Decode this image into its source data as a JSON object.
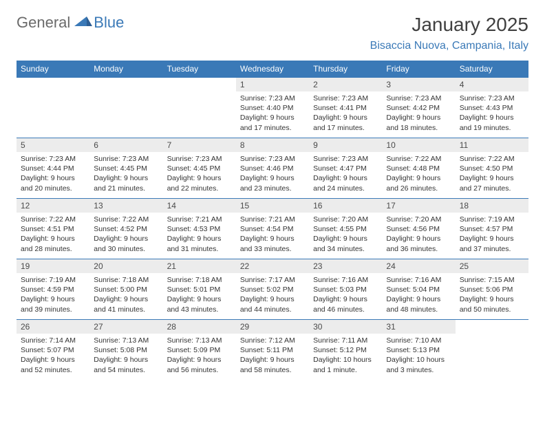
{
  "logo": {
    "text1": "General",
    "text2": "Blue",
    "accent": "#3a79b7",
    "gray": "#6a6a6a"
  },
  "title": "January 2025",
  "location": "Bisaccia Nuova, Campania, Italy",
  "colors": {
    "header_bg": "#3a79b7",
    "day_num_bg": "#ececec",
    "border": "#3a79b7",
    "text": "#333333",
    "title": "#404040"
  },
  "days_of_week": [
    "Sunday",
    "Monday",
    "Tuesday",
    "Wednesday",
    "Thursday",
    "Friday",
    "Saturday"
  ],
  "weeks": [
    [
      {
        "n": "",
        "sr": "",
        "ss": "",
        "dl": ""
      },
      {
        "n": "",
        "sr": "",
        "ss": "",
        "dl": ""
      },
      {
        "n": "",
        "sr": "",
        "ss": "",
        "dl": ""
      },
      {
        "n": "1",
        "sr": "Sunrise: 7:23 AM",
        "ss": "Sunset: 4:40 PM",
        "dl": "Daylight: 9 hours and 17 minutes."
      },
      {
        "n": "2",
        "sr": "Sunrise: 7:23 AM",
        "ss": "Sunset: 4:41 PM",
        "dl": "Daylight: 9 hours and 17 minutes."
      },
      {
        "n": "3",
        "sr": "Sunrise: 7:23 AM",
        "ss": "Sunset: 4:42 PM",
        "dl": "Daylight: 9 hours and 18 minutes."
      },
      {
        "n": "4",
        "sr": "Sunrise: 7:23 AM",
        "ss": "Sunset: 4:43 PM",
        "dl": "Daylight: 9 hours and 19 minutes."
      }
    ],
    [
      {
        "n": "5",
        "sr": "Sunrise: 7:23 AM",
        "ss": "Sunset: 4:44 PM",
        "dl": "Daylight: 9 hours and 20 minutes."
      },
      {
        "n": "6",
        "sr": "Sunrise: 7:23 AM",
        "ss": "Sunset: 4:45 PM",
        "dl": "Daylight: 9 hours and 21 minutes."
      },
      {
        "n": "7",
        "sr": "Sunrise: 7:23 AM",
        "ss": "Sunset: 4:45 PM",
        "dl": "Daylight: 9 hours and 22 minutes."
      },
      {
        "n": "8",
        "sr": "Sunrise: 7:23 AM",
        "ss": "Sunset: 4:46 PM",
        "dl": "Daylight: 9 hours and 23 minutes."
      },
      {
        "n": "9",
        "sr": "Sunrise: 7:23 AM",
        "ss": "Sunset: 4:47 PM",
        "dl": "Daylight: 9 hours and 24 minutes."
      },
      {
        "n": "10",
        "sr": "Sunrise: 7:22 AM",
        "ss": "Sunset: 4:48 PM",
        "dl": "Daylight: 9 hours and 26 minutes."
      },
      {
        "n": "11",
        "sr": "Sunrise: 7:22 AM",
        "ss": "Sunset: 4:50 PM",
        "dl": "Daylight: 9 hours and 27 minutes."
      }
    ],
    [
      {
        "n": "12",
        "sr": "Sunrise: 7:22 AM",
        "ss": "Sunset: 4:51 PM",
        "dl": "Daylight: 9 hours and 28 minutes."
      },
      {
        "n": "13",
        "sr": "Sunrise: 7:22 AM",
        "ss": "Sunset: 4:52 PM",
        "dl": "Daylight: 9 hours and 30 minutes."
      },
      {
        "n": "14",
        "sr": "Sunrise: 7:21 AM",
        "ss": "Sunset: 4:53 PM",
        "dl": "Daylight: 9 hours and 31 minutes."
      },
      {
        "n": "15",
        "sr": "Sunrise: 7:21 AM",
        "ss": "Sunset: 4:54 PM",
        "dl": "Daylight: 9 hours and 33 minutes."
      },
      {
        "n": "16",
        "sr": "Sunrise: 7:20 AM",
        "ss": "Sunset: 4:55 PM",
        "dl": "Daylight: 9 hours and 34 minutes."
      },
      {
        "n": "17",
        "sr": "Sunrise: 7:20 AM",
        "ss": "Sunset: 4:56 PM",
        "dl": "Daylight: 9 hours and 36 minutes."
      },
      {
        "n": "18",
        "sr": "Sunrise: 7:19 AM",
        "ss": "Sunset: 4:57 PM",
        "dl": "Daylight: 9 hours and 37 minutes."
      }
    ],
    [
      {
        "n": "19",
        "sr": "Sunrise: 7:19 AM",
        "ss": "Sunset: 4:59 PM",
        "dl": "Daylight: 9 hours and 39 minutes."
      },
      {
        "n": "20",
        "sr": "Sunrise: 7:18 AM",
        "ss": "Sunset: 5:00 PM",
        "dl": "Daylight: 9 hours and 41 minutes."
      },
      {
        "n": "21",
        "sr": "Sunrise: 7:18 AM",
        "ss": "Sunset: 5:01 PM",
        "dl": "Daylight: 9 hours and 43 minutes."
      },
      {
        "n": "22",
        "sr": "Sunrise: 7:17 AM",
        "ss": "Sunset: 5:02 PM",
        "dl": "Daylight: 9 hours and 44 minutes."
      },
      {
        "n": "23",
        "sr": "Sunrise: 7:16 AM",
        "ss": "Sunset: 5:03 PM",
        "dl": "Daylight: 9 hours and 46 minutes."
      },
      {
        "n": "24",
        "sr": "Sunrise: 7:16 AM",
        "ss": "Sunset: 5:04 PM",
        "dl": "Daylight: 9 hours and 48 minutes."
      },
      {
        "n": "25",
        "sr": "Sunrise: 7:15 AM",
        "ss": "Sunset: 5:06 PM",
        "dl": "Daylight: 9 hours and 50 minutes."
      }
    ],
    [
      {
        "n": "26",
        "sr": "Sunrise: 7:14 AM",
        "ss": "Sunset: 5:07 PM",
        "dl": "Daylight: 9 hours and 52 minutes."
      },
      {
        "n": "27",
        "sr": "Sunrise: 7:13 AM",
        "ss": "Sunset: 5:08 PM",
        "dl": "Daylight: 9 hours and 54 minutes."
      },
      {
        "n": "28",
        "sr": "Sunrise: 7:13 AM",
        "ss": "Sunset: 5:09 PM",
        "dl": "Daylight: 9 hours and 56 minutes."
      },
      {
        "n": "29",
        "sr": "Sunrise: 7:12 AM",
        "ss": "Sunset: 5:11 PM",
        "dl": "Daylight: 9 hours and 58 minutes."
      },
      {
        "n": "30",
        "sr": "Sunrise: 7:11 AM",
        "ss": "Sunset: 5:12 PM",
        "dl": "Daylight: 10 hours and 1 minute."
      },
      {
        "n": "31",
        "sr": "Sunrise: 7:10 AM",
        "ss": "Sunset: 5:13 PM",
        "dl": "Daylight: 10 hours and 3 minutes."
      },
      {
        "n": "",
        "sr": "",
        "ss": "",
        "dl": ""
      }
    ]
  ]
}
